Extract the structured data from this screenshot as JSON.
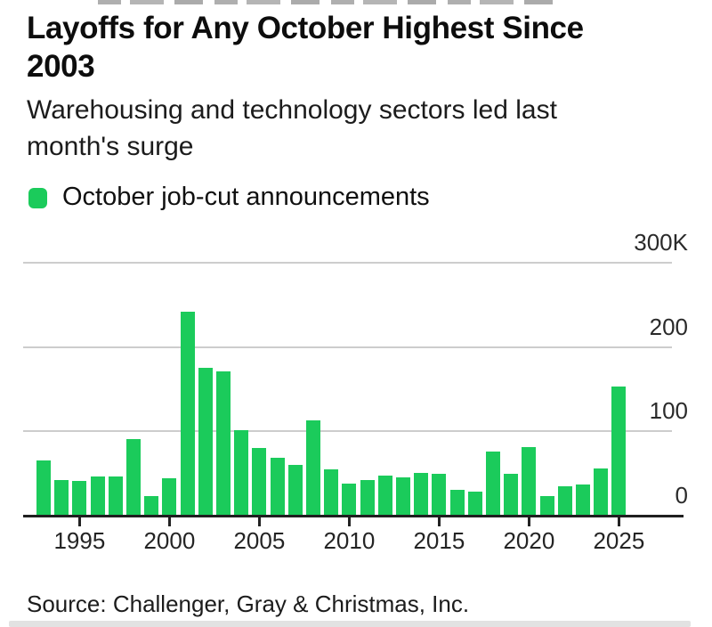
{
  "header": {
    "title": "Layoffs for Any October Highest Since 2003",
    "title_lines": [
      "Layoffs for Any October Highest Since",
      "2003"
    ],
    "subtitle": "Warehousing and technology sectors led last month's surge",
    "subtitle_lines": [
      "Warehousing and technology sectors led last",
      "month's surge"
    ]
  },
  "legend": {
    "label": "October job-cut announcements",
    "swatch_color": "#1bcb5b"
  },
  "chart_data": {
    "type": "bar",
    "title": "Layoffs for Any October Highest Since 2003",
    "subtitle": "Warehousing and technology sectors led last month's surge",
    "series_label": "October job-cut announcements",
    "unit": "thousands of announced job cuts",
    "categories": [
      1993,
      1994,
      1995,
      1996,
      1997,
      1998,
      1999,
      2000,
      2001,
      2002,
      2003,
      2004,
      2005,
      2006,
      2007,
      2008,
      2009,
      2010,
      2011,
      2012,
      2013,
      2014,
      2015,
      2016,
      2017,
      2018,
      2019,
      2020,
      2021,
      2022,
      2023,
      2024,
      2025
    ],
    "values": [
      66,
      42,
      41,
      47,
      46,
      91,
      23,
      44,
      242,
      175,
      171,
      101,
      80,
      69,
      60,
      113,
      55,
      38,
      42,
      48,
      45,
      51,
      50,
      31,
      29,
      76,
      50,
      81,
      23,
      35,
      37,
      56,
      153
    ],
    "ylim": [
      0,
      300
    ],
    "yticks": [
      {
        "label": "300K",
        "value": 300
      },
      {
        "label": "200",
        "value": 200
      },
      {
        "label": "100",
        "value": 100
      },
      {
        "label": "0",
        "value": 0
      }
    ],
    "xticks": [
      1995,
      2000,
      2005,
      2010,
      2015,
      2020,
      2025
    ],
    "bar_color": "#1bcb5b",
    "grid": "horizontal",
    "legend_position": "top-left",
    "axis_labels_position": "right"
  },
  "source": {
    "text": "Source: Challenger, Gray & Christmas, Inc."
  }
}
